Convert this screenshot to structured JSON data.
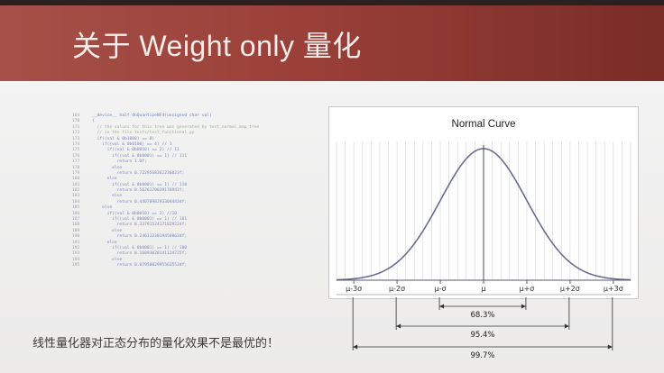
{
  "slide": {
    "title": "关于 Weight only 量化",
    "caption": "线性量化器对正态分布的量化效果不是最优的！",
    "accent_color": "#9a4039"
  },
  "code_snippet": {
    "lines": [
      {
        "num": "164",
        "text": "__device__ half dnQuantizeNF4(unsigned char val)",
        "kind": "kw"
      },
      {
        "num": "170",
        "text": "{",
        "kind": "tx"
      },
      {
        "num": "171",
        "text": "  // the values for this tree was generated by test_normal_map_tree",
        "kind": "cm"
      },
      {
        "num": "172",
        "text": "  // in the file tests/test_functional.py",
        "kind": "cm"
      },
      {
        "num": "173",
        "text": "  if((val & 0b1000) == 8)",
        "kind": "tx"
      },
      {
        "num": "174",
        "text": "    if((val & 0b0100) == 4) // 1",
        "kind": "tx"
      },
      {
        "num": "175",
        "text": "      if((val & 0b0010) == 2) // 11",
        "kind": "tx"
      },
      {
        "num": "176",
        "text": "        if((val & 0b0001) == 1) // 111",
        "kind": "tx"
      },
      {
        "num": "177",
        "text": "          return 1.0f;",
        "kind": "tx"
      },
      {
        "num": "178",
        "text": "        else",
        "kind": "tx"
      },
      {
        "num": "179",
        "text": "          return 0.7229568362236023f;",
        "kind": "tx"
      },
      {
        "num": "180",
        "text": "      else",
        "kind": "tx"
      },
      {
        "num": "181",
        "text": "        if((val & 0b0001) == 1) // 110",
        "kind": "tx"
      },
      {
        "num": "182",
        "text": "          return 0.5626170039176941f;",
        "kind": "tx"
      },
      {
        "num": "183",
        "text": "        else",
        "kind": "tx"
      },
      {
        "num": "184",
        "text": "          return 0.44070982933044434f;",
        "kind": "tx"
      },
      {
        "num": "185",
        "text": "    else",
        "kind": "tx"
      },
      {
        "num": "186",
        "text": "      if((val & 0b0010) == 2) //10",
        "kind": "tx"
      },
      {
        "num": "187",
        "text": "        if((val & 0b0001) == 1) // 101",
        "kind": "tx"
      },
      {
        "num": "188",
        "text": "          return 0.33791524171829224f;",
        "kind": "tx"
      },
      {
        "num": "189",
        "text": "        else",
        "kind": "tx"
      },
      {
        "num": "190",
        "text": "          return 0.24611230194568634f;",
        "kind": "tx"
      },
      {
        "num": "191",
        "text": "      else",
        "kind": "tx"
      },
      {
        "num": "192",
        "text": "        if((val & 0b0001) == 1) // 100",
        "kind": "tx"
      },
      {
        "num": "193",
        "text": "          return 0.16093020141124725f;",
        "kind": "tx"
      },
      {
        "num": "194",
        "text": "        else",
        "kind": "tx"
      },
      {
        "num": "195",
        "text": "          return 0.07958029955625534f;",
        "kind": "tx"
      }
    ]
  },
  "chart_data": {
    "type": "line",
    "title": "Normal Curve",
    "series": [
      {
        "x": [
          -3.4,
          -3,
          -2.5,
          -2,
          -1.5,
          -1,
          -0.5,
          0,
          0.5,
          1,
          1.5,
          2,
          2.5,
          3,
          3.4
        ],
        "values": [
          0.0012,
          0.0044,
          0.0175,
          0.054,
          0.1295,
          0.242,
          0.352,
          0.399,
          0.352,
          0.242,
          0.1295,
          0.054,
          0.0175,
          0.0044,
          0.0012
        ]
      }
    ],
    "xlim": [
      -3.4,
      3.4
    ],
    "xticks": [
      -3,
      -2,
      -1,
      0,
      1,
      2,
      3
    ],
    "xtick_labels": [
      "μ-3σ",
      "μ-2σ",
      "μ-σ",
      "μ",
      "μ+σ",
      "μ+2σ",
      "μ+3σ"
    ],
    "grid": true,
    "intervals": [
      {
        "range": [
          -1,
          1
        ],
        "label": "68.3%"
      },
      {
        "range": [
          -2,
          2
        ],
        "label": "95.4%"
      },
      {
        "range": [
          -3,
          3
        ],
        "label": "99.7%"
      }
    ],
    "curve_color": "#6a6c96"
  }
}
